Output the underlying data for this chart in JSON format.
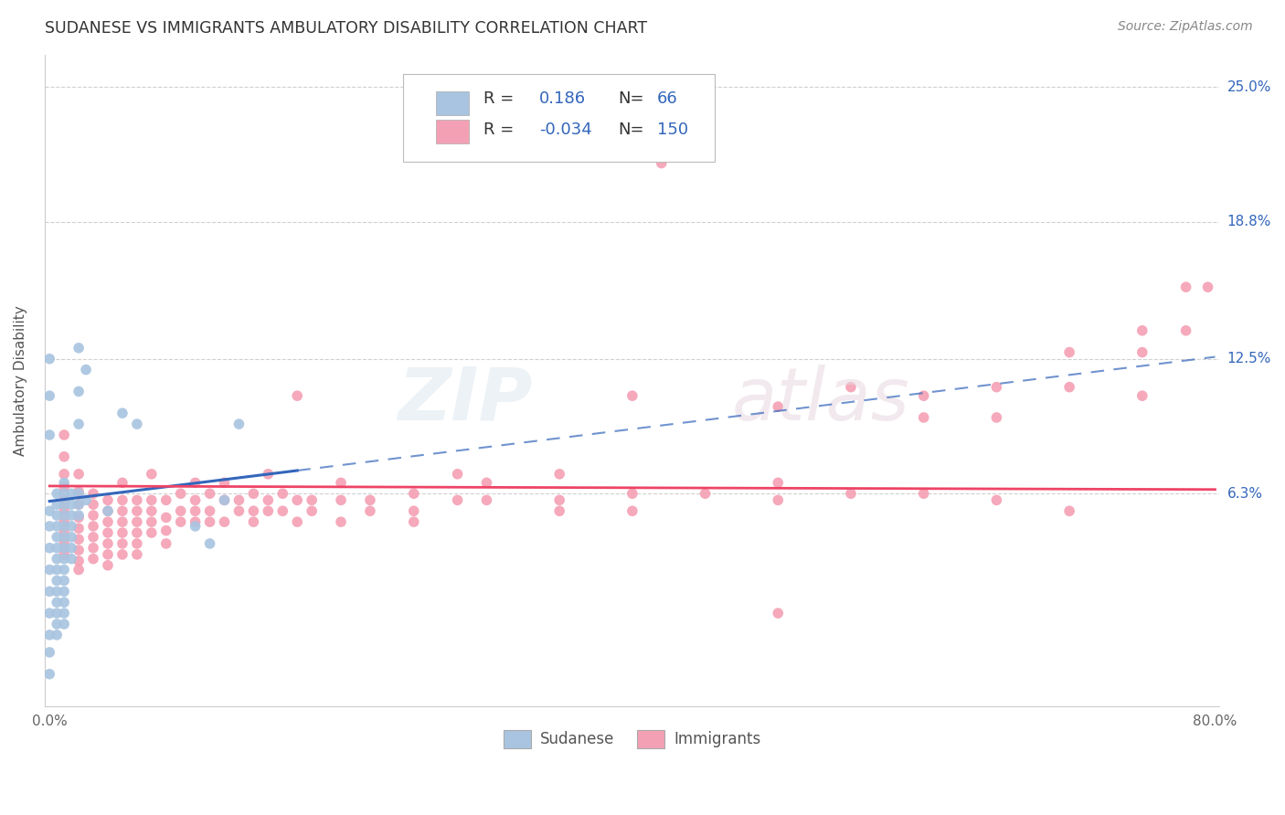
{
  "title": "SUDANESE VS IMMIGRANTS AMBULATORY DISABILITY CORRELATION CHART",
  "source": "Source: ZipAtlas.com",
  "ylabel": "Ambulatory Disability",
  "xlim": [
    0.0,
    0.8
  ],
  "ylim": [
    -0.035,
    0.265
  ],
  "xticks": [
    0.0,
    0.1,
    0.2,
    0.3,
    0.4,
    0.5,
    0.6,
    0.7,
    0.8
  ],
  "ytick_positions": [
    0.063,
    0.125,
    0.188,
    0.25
  ],
  "ytick_labels": [
    "6.3%",
    "12.5%",
    "18.8%",
    "25.0%"
  ],
  "grid_color": "#d0d0d0",
  "background_color": "#ffffff",
  "sudanese_color": "#a8c4e0",
  "immigrants_color": "#f4a0b4",
  "sudanese_R": 0.186,
  "sudanese_N": 66,
  "immigrants_R": -0.034,
  "immigrants_N": 150,
  "sudanese_line_color": "#3366bb",
  "immigrants_line_color": "#ee4466",
  "legend_text_color": "#3366bb",
  "sudanese_scatter": [
    [
      0.005,
      0.063
    ],
    [
      0.005,
      0.058
    ],
    [
      0.005,
      0.053
    ],
    [
      0.005,
      0.048
    ],
    [
      0.005,
      0.043
    ],
    [
      0.005,
      0.038
    ],
    [
      0.005,
      0.033
    ],
    [
      0.005,
      0.028
    ],
    [
      0.005,
      0.023
    ],
    [
      0.005,
      0.018
    ],
    [
      0.005,
      0.013
    ],
    [
      0.005,
      0.008
    ],
    [
      0.005,
      0.003
    ],
    [
      0.005,
      -0.002
    ],
    [
      0.01,
      0.068
    ],
    [
      0.01,
      0.063
    ],
    [
      0.01,
      0.058
    ],
    [
      0.01,
      0.053
    ],
    [
      0.01,
      0.048
    ],
    [
      0.01,
      0.043
    ],
    [
      0.01,
      0.038
    ],
    [
      0.01,
      0.033
    ],
    [
      0.01,
      0.028
    ],
    [
      0.01,
      0.023
    ],
    [
      0.01,
      0.018
    ],
    [
      0.01,
      0.013
    ],
    [
      0.01,
      0.008
    ],
    [
      0.01,
      0.003
    ],
    [
      0.015,
      0.063
    ],
    [
      0.015,
      0.058
    ],
    [
      0.015,
      0.053
    ],
    [
      0.015,
      0.048
    ],
    [
      0.015,
      0.043
    ],
    [
      0.015,
      0.038
    ],
    [
      0.015,
      0.033
    ],
    [
      0.02,
      0.13
    ],
    [
      0.02,
      0.11
    ],
    [
      0.02,
      0.095
    ],
    [
      0.02,
      0.063
    ],
    [
      0.02,
      0.058
    ],
    [
      0.02,
      0.053
    ],
    [
      0.025,
      0.12
    ],
    [
      0.025,
      0.06
    ],
    [
      0.04,
      0.055
    ],
    [
      0.05,
      0.1
    ],
    [
      0.06,
      0.095
    ],
    [
      0.1,
      0.048
    ],
    [
      0.11,
      0.04
    ],
    [
      0.12,
      0.06
    ],
    [
      0.13,
      0.095
    ],
    [
      0.0,
      0.125
    ],
    [
      0.0,
      0.108
    ],
    [
      0.0,
      0.09
    ],
    [
      0.0,
      0.055
    ],
    [
      0.0,
      0.048
    ],
    [
      0.0,
      0.038
    ],
    [
      0.0,
      0.028
    ],
    [
      0.0,
      0.018
    ],
    [
      0.0,
      0.008
    ],
    [
      0.0,
      -0.002
    ],
    [
      0.0,
      -0.01
    ],
    [
      0.0,
      -0.02
    ]
  ],
  "immigrants_scatter": [
    [
      0.01,
      0.09
    ],
    [
      0.01,
      0.08
    ],
    [
      0.01,
      0.072
    ],
    [
      0.01,
      0.066
    ],
    [
      0.01,
      0.06
    ],
    [
      0.01,
      0.055
    ],
    [
      0.01,
      0.05
    ],
    [
      0.01,
      0.045
    ],
    [
      0.01,
      0.04
    ],
    [
      0.01,
      0.035
    ],
    [
      0.02,
      0.072
    ],
    [
      0.02,
      0.064
    ],
    [
      0.02,
      0.058
    ],
    [
      0.02,
      0.052
    ],
    [
      0.02,
      0.047
    ],
    [
      0.02,
      0.042
    ],
    [
      0.02,
      0.037
    ],
    [
      0.02,
      0.032
    ],
    [
      0.02,
      0.028
    ],
    [
      0.03,
      0.063
    ],
    [
      0.03,
      0.058
    ],
    [
      0.03,
      0.053
    ],
    [
      0.03,
      0.048
    ],
    [
      0.03,
      0.043
    ],
    [
      0.03,
      0.038
    ],
    [
      0.03,
      0.033
    ],
    [
      0.04,
      0.06
    ],
    [
      0.04,
      0.055
    ],
    [
      0.04,
      0.05
    ],
    [
      0.04,
      0.045
    ],
    [
      0.04,
      0.04
    ],
    [
      0.04,
      0.035
    ],
    [
      0.04,
      0.03
    ],
    [
      0.05,
      0.068
    ],
    [
      0.05,
      0.06
    ],
    [
      0.05,
      0.055
    ],
    [
      0.05,
      0.05
    ],
    [
      0.05,
      0.045
    ],
    [
      0.05,
      0.04
    ],
    [
      0.05,
      0.035
    ],
    [
      0.06,
      0.06
    ],
    [
      0.06,
      0.055
    ],
    [
      0.06,
      0.05
    ],
    [
      0.06,
      0.045
    ],
    [
      0.06,
      0.04
    ],
    [
      0.06,
      0.035
    ],
    [
      0.07,
      0.072
    ],
    [
      0.07,
      0.06
    ],
    [
      0.07,
      0.055
    ],
    [
      0.07,
      0.05
    ],
    [
      0.07,
      0.045
    ],
    [
      0.08,
      0.06
    ],
    [
      0.08,
      0.052
    ],
    [
      0.08,
      0.046
    ],
    [
      0.08,
      0.04
    ],
    [
      0.09,
      0.063
    ],
    [
      0.09,
      0.055
    ],
    [
      0.09,
      0.05
    ],
    [
      0.1,
      0.068
    ],
    [
      0.1,
      0.06
    ],
    [
      0.1,
      0.055
    ],
    [
      0.1,
      0.05
    ],
    [
      0.11,
      0.063
    ],
    [
      0.11,
      0.055
    ],
    [
      0.11,
      0.05
    ],
    [
      0.12,
      0.068
    ],
    [
      0.12,
      0.06
    ],
    [
      0.12,
      0.05
    ],
    [
      0.13,
      0.06
    ],
    [
      0.13,
      0.055
    ],
    [
      0.14,
      0.063
    ],
    [
      0.14,
      0.055
    ],
    [
      0.14,
      0.05
    ],
    [
      0.15,
      0.072
    ],
    [
      0.15,
      0.06
    ],
    [
      0.15,
      0.055
    ],
    [
      0.16,
      0.063
    ],
    [
      0.16,
      0.055
    ],
    [
      0.17,
      0.108
    ],
    [
      0.17,
      0.06
    ],
    [
      0.17,
      0.05
    ],
    [
      0.18,
      0.06
    ],
    [
      0.18,
      0.055
    ],
    [
      0.2,
      0.068
    ],
    [
      0.2,
      0.06
    ],
    [
      0.2,
      0.05
    ],
    [
      0.22,
      0.06
    ],
    [
      0.22,
      0.055
    ],
    [
      0.25,
      0.063
    ],
    [
      0.25,
      0.055
    ],
    [
      0.25,
      0.05
    ],
    [
      0.28,
      0.072
    ],
    [
      0.28,
      0.06
    ],
    [
      0.3,
      0.068
    ],
    [
      0.3,
      0.06
    ],
    [
      0.35,
      0.072
    ],
    [
      0.35,
      0.06
    ],
    [
      0.35,
      0.055
    ],
    [
      0.4,
      0.108
    ],
    [
      0.4,
      0.063
    ],
    [
      0.4,
      0.055
    ],
    [
      0.42,
      0.215
    ],
    [
      0.45,
      0.063
    ],
    [
      0.5,
      0.103
    ],
    [
      0.5,
      0.068
    ],
    [
      0.5,
      0.06
    ],
    [
      0.5,
      0.008
    ],
    [
      0.55,
      0.112
    ],
    [
      0.55,
      0.063
    ],
    [
      0.6,
      0.108
    ],
    [
      0.6,
      0.098
    ],
    [
      0.6,
      0.063
    ],
    [
      0.65,
      0.112
    ],
    [
      0.65,
      0.098
    ],
    [
      0.65,
      0.06
    ],
    [
      0.7,
      0.128
    ],
    [
      0.7,
      0.112
    ],
    [
      0.7,
      0.055
    ],
    [
      0.75,
      0.138
    ],
    [
      0.75,
      0.128
    ],
    [
      0.75,
      0.108
    ],
    [
      0.78,
      0.158
    ],
    [
      0.78,
      0.138
    ],
    [
      0.795,
      0.158
    ]
  ],
  "sud_line_x0": 0.0,
  "sud_line_y0": 0.0595,
  "sud_line_slope": 0.083,
  "sud_line_solid_end": 0.17,
  "imm_line_x0": 0.0,
  "imm_line_y0": 0.0665,
  "imm_line_slope": -0.002
}
